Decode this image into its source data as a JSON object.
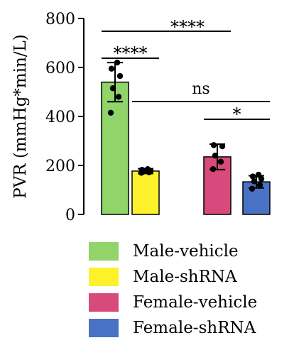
{
  "chart_data": {
    "type": "bar",
    "ylabel": "PVR (mmHg*min/L)",
    "ylim": [
      0,
      800
    ],
    "yticks": [
      0,
      200,
      400,
      600,
      800
    ],
    "categories": [
      "Male-vehicle",
      "Male-shRNA",
      "Female-vehicle",
      "Female-shRNA"
    ],
    "values": [
      540,
      177,
      235,
      133
    ],
    "errors": [
      80,
      10,
      52,
      25
    ],
    "colors": [
      "#91d46a",
      "#fcf12a",
      "#d84a7b",
      "#4a72c4"
    ],
    "points": [
      [
        415,
        480,
        515,
        565,
        595,
        620
      ],
      [
        170,
        172,
        175,
        178,
        182,
        185
      ],
      [
        185,
        215,
        240,
        278,
        283
      ],
      [
        105,
        120,
        135,
        145,
        155,
        162
      ]
    ],
    "significance": [
      {
        "from": 0,
        "to": 2,
        "label": "****"
      },
      {
        "from": 0,
        "to": 1,
        "label": "****"
      },
      {
        "from": 1,
        "to": 3,
        "label": "ns"
      },
      {
        "from": 2,
        "to": 3,
        "label": "*"
      }
    ],
    "legend": [
      "Male-vehicle",
      "Male-shRNA",
      "Female-vehicle",
      "Female-shRNA"
    ]
  }
}
